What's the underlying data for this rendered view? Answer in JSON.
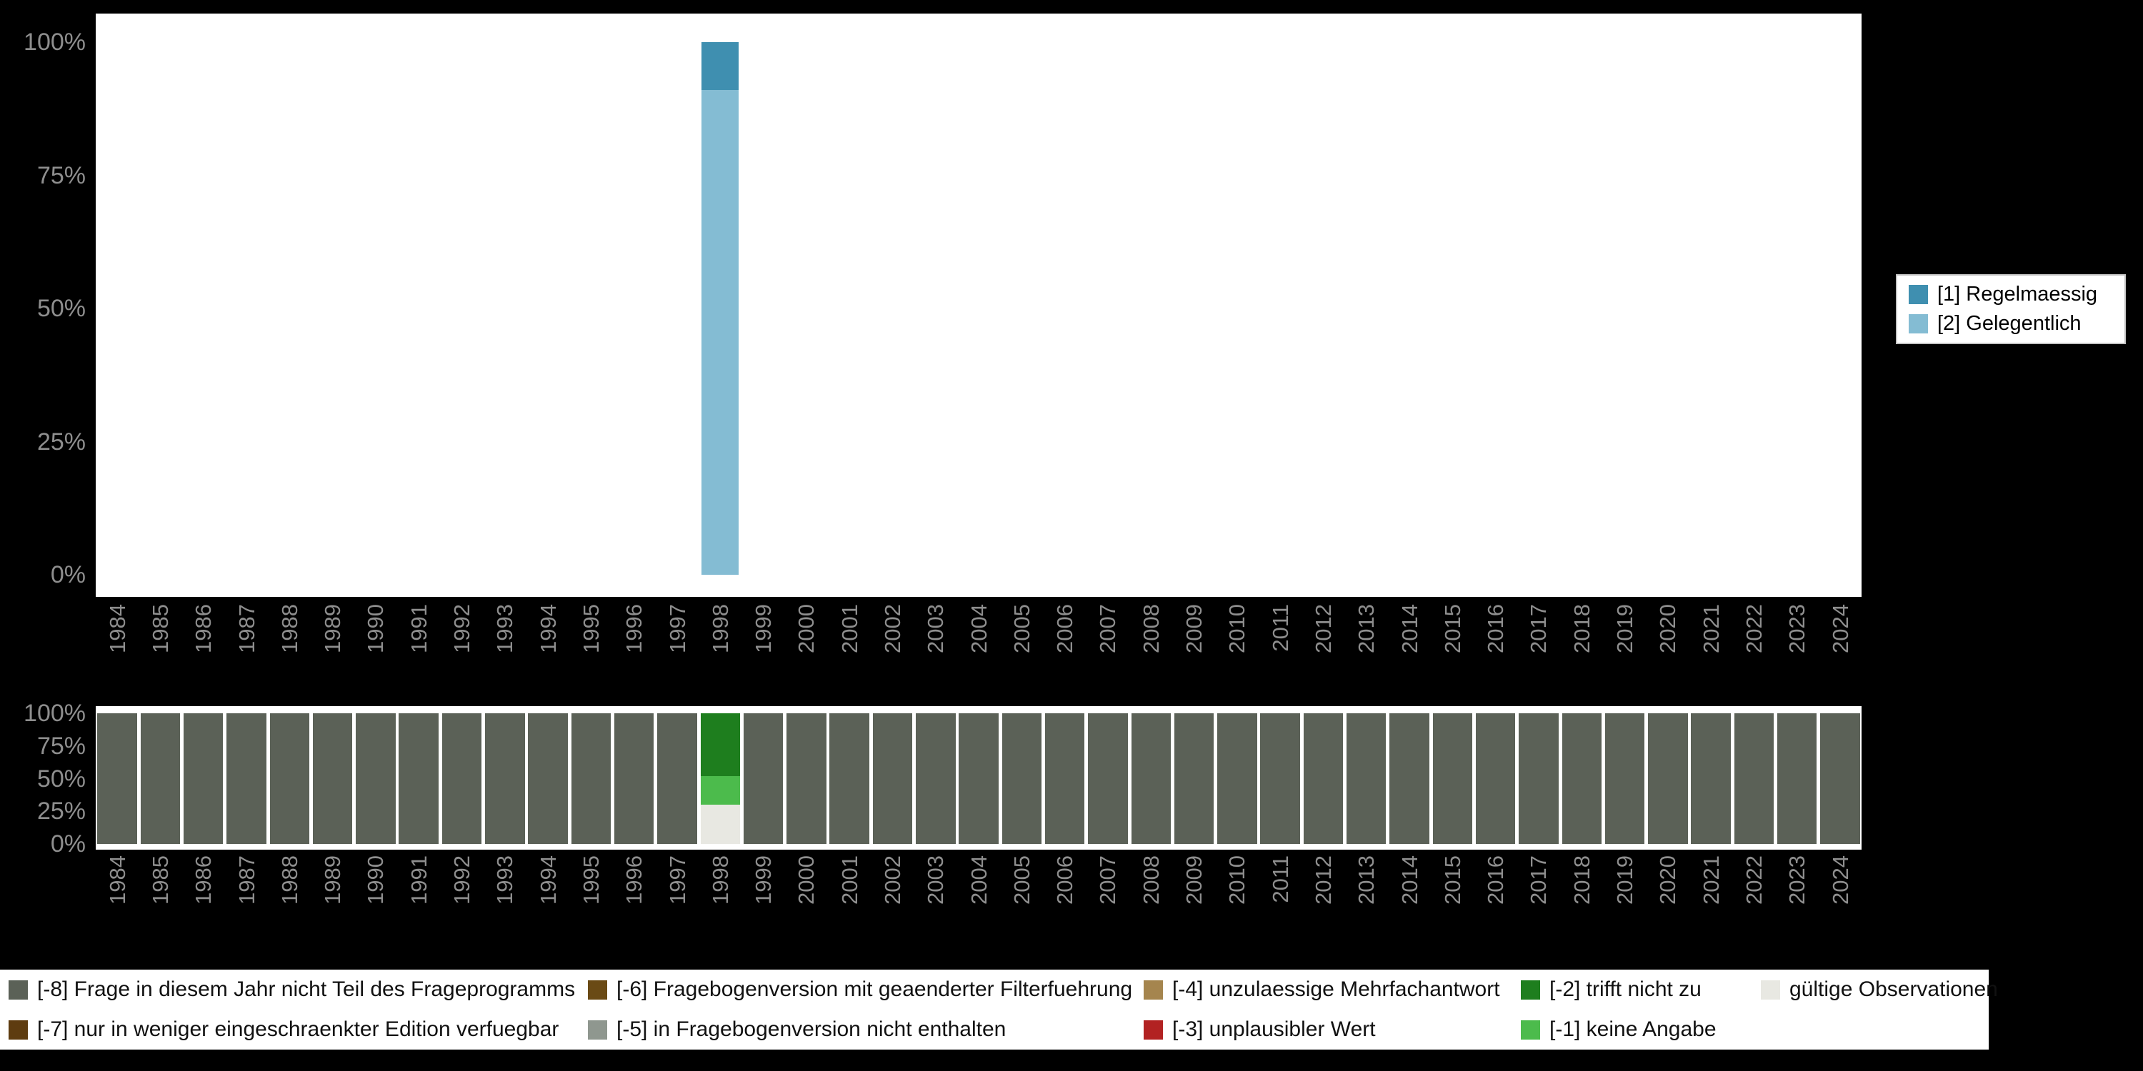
{
  "page": {
    "background": "#000000",
    "plot_background": "#ffffff",
    "axis_text_color": "#8e8e8e"
  },
  "chart_data": [
    {
      "type": "bar",
      "stacked": true,
      "title": "",
      "xlabel": "",
      "ylabel": "",
      "ylim": [
        0,
        100
      ],
      "yticks": [
        "100%",
        "75%",
        "50%",
        "25%",
        "0%"
      ],
      "grid": false,
      "legend_position": "right",
      "categories": [
        "1984",
        "1985",
        "1986",
        "1987",
        "1988",
        "1989",
        "1990",
        "1991",
        "1992",
        "1993",
        "1994",
        "1995",
        "1996",
        "1997",
        "1998",
        "1999",
        "2000",
        "2001",
        "2002",
        "2003",
        "2004",
        "2005",
        "2006",
        "2007",
        "2008",
        "2009",
        "2010",
        "2011",
        "2012",
        "2013",
        "2014",
        "2015",
        "2016",
        "2017",
        "2018",
        "2019",
        "2020",
        "2021",
        "2022",
        "2023",
        "2024"
      ],
      "series": [
        {
          "name": "[2] Gelegentlich",
          "color": "#84bcd3",
          "values": [
            0,
            0,
            0,
            0,
            0,
            0,
            0,
            0,
            0,
            0,
            0,
            0,
            0,
            0,
            91,
            0,
            0,
            0,
            0,
            0,
            0,
            0,
            0,
            0,
            0,
            0,
            0,
            0,
            0,
            0,
            0,
            0,
            0,
            0,
            0,
            0,
            0,
            0,
            0,
            0,
            0
          ]
        },
        {
          "name": "[1] Regelmaessig",
          "color": "#3f8fb0",
          "values": [
            0,
            0,
            0,
            0,
            0,
            0,
            0,
            0,
            0,
            0,
            0,
            0,
            0,
            0,
            9,
            0,
            0,
            0,
            0,
            0,
            0,
            0,
            0,
            0,
            0,
            0,
            0,
            0,
            0,
            0,
            0,
            0,
            0,
            0,
            0,
            0,
            0,
            0,
            0,
            0,
            0
          ]
        }
      ]
    },
    {
      "type": "bar",
      "stacked": true,
      "title": "",
      "xlabel": "",
      "ylabel": "",
      "ylim": [
        0,
        100
      ],
      "yticks": [
        "100%",
        "75%",
        "50%",
        "25%",
        "0%"
      ],
      "grid": false,
      "legend_position": "bottom",
      "categories": [
        "1984",
        "1985",
        "1986",
        "1987",
        "1988",
        "1989",
        "1990",
        "1991",
        "1992",
        "1993",
        "1994",
        "1995",
        "1996",
        "1997",
        "1998",
        "1999",
        "2000",
        "2001",
        "2002",
        "2003",
        "2004",
        "2005",
        "2006",
        "2007",
        "2008",
        "2009",
        "2010",
        "2011",
        "2012",
        "2013",
        "2014",
        "2015",
        "2016",
        "2017",
        "2018",
        "2019",
        "2020",
        "2021",
        "2022",
        "2023",
        "2024"
      ],
      "series": [
        {
          "name": "gültige Observationen",
          "color": "#e8e8e2",
          "values": [
            0,
            0,
            0,
            0,
            0,
            0,
            0,
            0,
            0,
            0,
            0,
            0,
            0,
            0,
            30,
            0,
            0,
            0,
            0,
            0,
            0,
            0,
            0,
            0,
            0,
            0,
            0,
            0,
            0,
            0,
            0,
            0,
            0,
            0,
            0,
            0,
            0,
            0,
            0,
            0,
            0
          ]
        },
        {
          "name": "[-1] keine Angabe",
          "color": "#4cbb4c",
          "values": [
            0,
            0,
            0,
            0,
            0,
            0,
            0,
            0,
            0,
            0,
            0,
            0,
            0,
            0,
            22,
            0,
            0,
            0,
            0,
            0,
            0,
            0,
            0,
            0,
            0,
            0,
            0,
            0,
            0,
            0,
            0,
            0,
            0,
            0,
            0,
            0,
            0,
            0,
            0,
            0,
            0
          ]
        },
        {
          "name": "[-2] trifft nicht zu",
          "color": "#1e7e1e",
          "values": [
            0,
            0,
            0,
            0,
            0,
            0,
            0,
            0,
            0,
            0,
            0,
            0,
            0,
            0,
            48,
            0,
            0,
            0,
            0,
            0,
            0,
            0,
            0,
            0,
            0,
            0,
            0,
            0,
            0,
            0,
            0,
            0,
            0,
            0,
            0,
            0,
            0,
            0,
            0,
            0,
            0
          ]
        },
        {
          "name": "[-8] Frage in diesem Jahr nicht Teil des Frageprogramms",
          "color": "#5b6157",
          "values": [
            100,
            100,
            100,
            100,
            100,
            100,
            100,
            100,
            100,
            100,
            100,
            100,
            100,
            100,
            0,
            100,
            100,
            100,
            100,
            100,
            100,
            100,
            100,
            100,
            100,
            100,
            100,
            100,
            100,
            100,
            100,
            100,
            100,
            100,
            100,
            100,
            100,
            100,
            100,
            100,
            100
          ]
        }
      ]
    }
  ],
  "legend_top": {
    "items": [
      {
        "label": "[1] Regelmaessig",
        "color": "#3f8fb0"
      },
      {
        "label": "[2] Gelegentlich",
        "color": "#84bcd3"
      }
    ]
  },
  "legend_bottom": {
    "entries": [
      {
        "label": "[-8] Frage in diesem Jahr nicht Teil des Frageprogramms",
        "color": "#5b6157"
      },
      {
        "label": "[-7] nur in weniger eingeschraenkter Edition verfuegbar",
        "color": "#5e3c10"
      },
      {
        "label": "[-6] Fragebogenversion mit geaenderter Filterfuehrung",
        "color": "#6a4a15"
      },
      {
        "label": "[-5] in Fragebogenversion nicht enthalten",
        "color": "#8f978f"
      },
      {
        "label": "[-4] unzulaessige Mehrfachantwort",
        "color": "#a5854e"
      },
      {
        "label": "[-3] unplausibler Wert",
        "color": "#b22222"
      },
      {
        "label": "[-2] trifft nicht zu",
        "color": "#1e7e1e"
      },
      {
        "label": "[-1] keine Angabe",
        "color": "#4cbb4c"
      },
      {
        "label": "gültige Observationen",
        "color": "#e8e8e2"
      }
    ]
  }
}
